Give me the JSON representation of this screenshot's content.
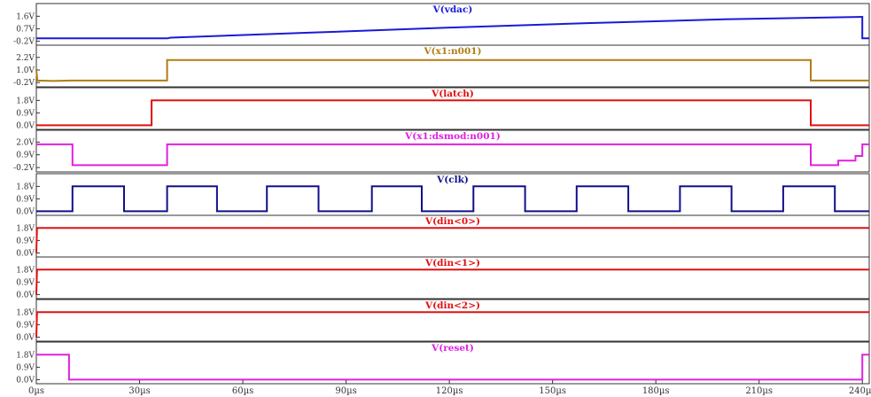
{
  "chart_data": {
    "type": "line",
    "title": "",
    "x_ticks": [
      "0µs",
      "30µs",
      "60µs",
      "90µs",
      "120µs",
      "150µs",
      "180µs",
      "210µs",
      "240µs"
    ],
    "x_tick_values": [
      0,
      30,
      60,
      90,
      120,
      150,
      180,
      210,
      240
    ],
    "xlim": [
      0,
      242
    ],
    "x_unit": "µs",
    "grid": false,
    "panels": [
      {
        "name": "V(vdac)",
        "color": "#1a1ad6",
        "yticks": [
          "1.6V",
          "0.7V",
          "-0.2V"
        ],
        "ytick_values": [
          1.6,
          0.7,
          -0.2
        ],
        "ylim": [
          -0.3,
          1.75
        ],
        "points": [
          [
            0,
            0.0
          ],
          [
            38,
            0.0
          ],
          [
            39,
            0.05
          ],
          [
            80,
            0.42
          ],
          [
            120,
            0.78
          ],
          [
            160,
            1.1
          ],
          [
            200,
            1.38
          ],
          [
            239,
            1.55
          ],
          [
            240,
            1.56
          ],
          [
            240,
            0.0
          ],
          [
            242,
            0.0
          ]
        ]
      },
      {
        "name": "V(x1:n001)",
        "color": "#b07d14",
        "yticks": [
          "2.2V",
          "1.0V",
          "-0.2V"
        ],
        "ytick_values": [
          2.2,
          1.0,
          -0.2
        ],
        "ylim": [
          -0.35,
          2.35
        ],
        "points": [
          [
            0,
            1.0
          ],
          [
            0.3,
            0.0
          ],
          [
            5,
            -0.05
          ],
          [
            10,
            0.0
          ],
          [
            38,
            0.0
          ],
          [
            38,
            1.95
          ],
          [
            225,
            1.95
          ],
          [
            225,
            0.0
          ],
          [
            242,
            0.0
          ]
        ]
      },
      {
        "name": "V(latch)",
        "color": "#e01010",
        "yticks": [
          "1.8V",
          "0.9V",
          "0.0V"
        ],
        "ytick_values": [
          1.8,
          0.9,
          0.0
        ],
        "ylim": [
          -0.1,
          1.95
        ],
        "points": [
          [
            0,
            0.0
          ],
          [
            33.5,
            0.0
          ],
          [
            33.5,
            1.8
          ],
          [
            225,
            1.8
          ],
          [
            225,
            0.0
          ],
          [
            242,
            0.0
          ]
        ]
      },
      {
        "name": "V(x1:dsmod:n001)",
        "color": "#e020e0",
        "yticks": [
          "2.0V",
          "0.9V",
          "-0.2V"
        ],
        "ytick_values": [
          2.0,
          0.9,
          -0.2
        ],
        "ylim": [
          -0.35,
          2.1
        ],
        "points": [
          [
            0,
            1.8
          ],
          [
            10.5,
            1.8
          ],
          [
            10.5,
            0.0
          ],
          [
            38,
            0.0
          ],
          [
            38,
            1.8
          ],
          [
            225,
            1.8
          ],
          [
            225,
            0.0
          ],
          [
            233,
            0.0
          ],
          [
            233,
            0.4
          ],
          [
            238,
            0.4
          ],
          [
            238,
            0.8
          ],
          [
            240,
            0.8
          ],
          [
            240,
            1.8
          ],
          [
            242,
            1.8
          ]
        ]
      },
      {
        "name": "V(clk)",
        "color": "#10108c",
        "yticks": [
          "1.8V",
          "0.9V",
          "0.0V"
        ],
        "ytick_values": [
          1.8,
          0.9,
          0.0
        ],
        "ylim": [
          -0.1,
          1.95
        ],
        "points": [
          [
            0,
            0.0
          ],
          [
            10.5,
            0.0
          ],
          [
            10.5,
            1.8
          ],
          [
            25.5,
            1.8
          ],
          [
            25.5,
            0.0
          ],
          [
            38,
            0.0
          ],
          [
            38,
            1.8
          ],
          [
            52.5,
            1.8
          ],
          [
            52.5,
            0.0
          ],
          [
            67,
            0.0
          ],
          [
            67,
            1.8
          ],
          [
            82,
            1.8
          ],
          [
            82,
            0.0
          ],
          [
            97.5,
            0.0
          ],
          [
            97.5,
            1.8
          ],
          [
            112,
            1.8
          ],
          [
            112,
            0.0
          ],
          [
            127,
            0.0
          ],
          [
            127,
            1.8
          ],
          [
            142,
            1.8
          ],
          [
            142,
            0.0
          ],
          [
            157,
            0.0
          ],
          [
            157,
            1.8
          ],
          [
            172,
            1.8
          ],
          [
            172,
            0.0
          ],
          [
            187,
            0.0
          ],
          [
            187,
            1.8
          ],
          [
            202,
            1.8
          ],
          [
            202,
            0.0
          ],
          [
            217,
            0.0
          ],
          [
            217,
            1.8
          ],
          [
            232,
            1.8
          ],
          [
            232,
            0.0
          ],
          [
            242,
            0.0
          ]
        ]
      },
      {
        "name": "V(din<0>)",
        "color": "#e01010",
        "yticks": [
          "1.8V",
          "0.9V",
          "0.0V"
        ],
        "ytick_values": [
          1.8,
          0.9,
          0.0
        ],
        "ylim": [
          -0.1,
          1.95
        ],
        "points": [
          [
            0,
            0.0
          ],
          [
            0.2,
            1.8
          ],
          [
            242,
            1.8
          ]
        ]
      },
      {
        "name": "V(din<1>)",
        "color": "#e01010",
        "yticks": [
          "1.8V",
          "0.9V",
          "0.0V"
        ],
        "ytick_values": [
          1.8,
          0.9,
          0.0
        ],
        "ylim": [
          -0.1,
          1.95
        ],
        "points": [
          [
            0,
            0.0
          ],
          [
            0.2,
            1.8
          ],
          [
            242,
            1.8
          ]
        ]
      },
      {
        "name": "V(din<2>)",
        "color": "#e01010",
        "yticks": [
          "1.8V",
          "0.9V",
          "0.0V"
        ],
        "ytick_values": [
          1.8,
          0.9,
          0.0
        ],
        "ylim": [
          -0.1,
          1.95
        ],
        "points": [
          [
            0,
            0.0
          ],
          [
            0.2,
            1.8
          ],
          [
            242,
            1.8
          ]
        ]
      },
      {
        "name": "V(reset)",
        "color": "#e020e0",
        "yticks": [
          "1.8V",
          "0.9V",
          "0.0V"
        ],
        "ytick_values": [
          1.8,
          0.9,
          0.0
        ],
        "ylim": [
          -0.1,
          1.95
        ],
        "points": [
          [
            0,
            1.8
          ],
          [
            9.5,
            1.8
          ],
          [
            9.5,
            0.0
          ],
          [
            240,
            0.0
          ],
          [
            240,
            1.8
          ],
          [
            242,
            1.8
          ]
        ]
      }
    ]
  }
}
